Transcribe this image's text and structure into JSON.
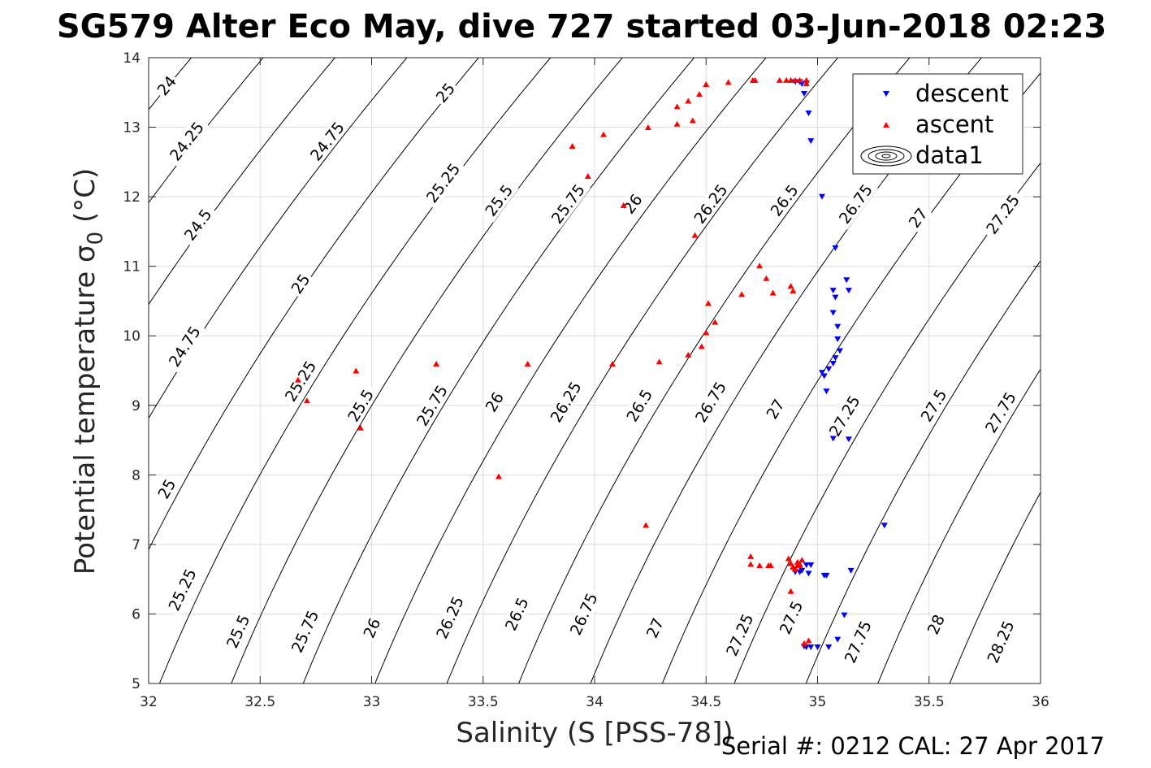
{
  "chart_data": {
    "type": "scatter",
    "title": "SG579 Alter Eco May, dive 727 started 03-Jun-2018 02:23",
    "xlabel": "Salinity (S [PSS-78])",
    "ylabel": "Potential temperature σ",
    "ylabel_subscript": "0",
    "ylabel_unit": " (°C)",
    "xlim": [
      32,
      36
    ],
    "ylim": [
      5,
      14
    ],
    "xticks": [
      "32",
      "32.5",
      "33",
      "33.5",
      "34",
      "34.5",
      "35",
      "35.5",
      "36"
    ],
    "yticks": [
      "5",
      "6",
      "7",
      "8",
      "9",
      "10",
      "11",
      "12",
      "13",
      "14"
    ],
    "grid": true,
    "legend_position": "top-right",
    "legend": [
      "descent",
      "ascent",
      "data1"
    ],
    "contour_levels": [
      24,
      24.25,
      24.5,
      24.75,
      25,
      25.25,
      25.5,
      25.75,
      26,
      26.25,
      26.5,
      26.75,
      27,
      27.25,
      27.5,
      27.75,
      28,
      28.25
    ],
    "contour_labels": [
      {
        "text": "24",
        "s": 32.08,
        "t": 13.6
      },
      {
        "text": "24.25",
        "s": 32.17,
        "t": 12.8
      },
      {
        "text": "24.5",
        "s": 32.22,
        "t": 11.6
      },
      {
        "text": "24.75",
        "s": 32.16,
        "t": 9.85
      },
      {
        "text": "25",
        "s": 32.08,
        "t": 7.8
      },
      {
        "text": "25.25",
        "s": 32.15,
        "t": 6.35
      },
      {
        "text": "25.5",
        "s": 32.4,
        "t": 5.75
      },
      {
        "text": "25.75",
        "s": 32.7,
        "t": 5.75
      },
      {
        "text": "26",
        "s": 33.0,
        "t": 5.8
      },
      {
        "text": "26.25",
        "s": 33.35,
        "t": 5.95
      },
      {
        "text": "26.5",
        "s": 33.65,
        "t": 6.0
      },
      {
        "text": "26.75",
        "s": 33.95,
        "t": 6.0
      },
      {
        "text": "27",
        "s": 34.27,
        "t": 5.8
      },
      {
        "text": "27.25",
        "s": 34.65,
        "t": 5.7
      },
      {
        "text": "27.5",
        "s": 34.88,
        "t": 5.95
      },
      {
        "text": "27.75",
        "s": 35.18,
        "t": 5.6
      },
      {
        "text": "28",
        "s": 35.53,
        "t": 5.85
      },
      {
        "text": "28.25",
        "s": 35.82,
        "t": 5.6
      },
      {
        "text": "24.75",
        "s": 32.8,
        "t": 12.8
      },
      {
        "text": "25",
        "s": 32.68,
        "t": 10.75
      },
      {
        "text": "25.25",
        "s": 32.68,
        "t": 9.35
      },
      {
        "text": "25.5",
        "s": 32.95,
        "t": 9.0
      },
      {
        "text": "25.75",
        "s": 33.27,
        "t": 9.0
      },
      {
        "text": "26",
        "s": 33.55,
        "t": 9.05
      },
      {
        "text": "26.25",
        "s": 33.87,
        "t": 9.05
      },
      {
        "text": "26.5",
        "s": 34.2,
        "t": 9.0
      },
      {
        "text": "26.75",
        "s": 34.52,
        "t": 9.05
      },
      {
        "text": "27",
        "s": 34.81,
        "t": 8.95
      },
      {
        "text": "27.25",
        "s": 35.12,
        "t": 8.85
      },
      {
        "text": "27.5",
        "s": 35.52,
        "t": 9.0
      },
      {
        "text": "27.75",
        "s": 35.82,
        "t": 8.9
      },
      {
        "text": "25",
        "s": 33.33,
        "t": 13.5
      },
      {
        "text": "25.25",
        "s": 33.32,
        "t": 12.2
      },
      {
        "text": "25.5",
        "s": 33.57,
        "t": 11.95
      },
      {
        "text": "25.75",
        "s": 33.88,
        "t": 11.9
      },
      {
        "text": "26",
        "s": 34.17,
        "t": 11.9
      },
      {
        "text": "26.25",
        "s": 34.52,
        "t": 11.9
      },
      {
        "text": "26.5",
        "s": 34.85,
        "t": 11.95
      },
      {
        "text": "26.75",
        "s": 35.17,
        "t": 11.9
      },
      {
        "text": "27",
        "s": 35.45,
        "t": 11.7
      },
      {
        "text": "27.25",
        "s": 35.83,
        "t": 11.75
      }
    ],
    "series": [
      {
        "name": "descent",
        "color": "#0000ff",
        "marker": "triangle-down",
        "x": [
          34.9,
          34.92,
          34.94,
          34.96,
          34.93,
          34.95,
          34.97,
          35.02,
          35.08,
          35.13,
          35.14,
          35.07,
          35.08,
          35.07,
          35.09,
          35.09,
          35.1,
          35.08,
          35.07,
          35.05,
          35.02,
          35.03,
          35.04,
          35.07,
          35.14,
          35.3,
          35.15,
          35.03,
          35.04,
          34.9,
          34.92,
          34.95,
          34.97,
          34.93,
          34.96,
          35.12,
          35.09,
          34.95,
          34.97,
          35.0,
          35.05,
          34.94
        ],
        "y": [
          13.65,
          13.65,
          13.48,
          13.2,
          13.62,
          13.63,
          12.8,
          12.0,
          11.26,
          10.8,
          10.65,
          10.65,
          10.55,
          10.33,
          10.13,
          9.95,
          9.78,
          9.68,
          9.6,
          9.52,
          9.47,
          9.42,
          9.2,
          8.52,
          8.51,
          7.27,
          6.62,
          6.55,
          6.55,
          6.6,
          6.6,
          6.7,
          6.7,
          6.62,
          6.58,
          5.98,
          5.63,
          5.52,
          5.52,
          5.52,
          5.52,
          5.53
        ]
      },
      {
        "name": "ascent",
        "color": "#ff0000",
        "marker": "triangle-up",
        "x": [
          32.67,
          32.71,
          32.93,
          32.95,
          33.29,
          33.57,
          33.7,
          33.9,
          33.97,
          34.04,
          34.08,
          34.13,
          34.23,
          34.24,
          34.29,
          34.37,
          34.37,
          34.42,
          34.42,
          34.44,
          34.45,
          34.47,
          34.48,
          34.5,
          34.5,
          34.51,
          34.54,
          34.6,
          34.66,
          34.72,
          34.74,
          34.77,
          34.8,
          34.83,
          34.86,
          34.88,
          34.89,
          34.9,
          34.92,
          34.95,
          34.7,
          34.71,
          34.74,
          34.78,
          34.79,
          34.7,
          34.87,
          34.88,
          34.89,
          34.9,
          34.91,
          34.92,
          34.93,
          34.88,
          34.89,
          34.9,
          34.91,
          34.92,
          34.94,
          34.96,
          34.95,
          34.88
        ],
        "y": [
          9.37,
          9.07,
          9.5,
          8.68,
          9.6,
          7.98,
          9.6,
          12.73,
          12.3,
          12.9,
          9.6,
          11.88,
          7.28,
          13.0,
          9.63,
          13.05,
          13.3,
          13.38,
          9.73,
          13.1,
          11.45,
          13.48,
          9.85,
          13.62,
          10.05,
          10.47,
          10.2,
          13.65,
          10.6,
          13.68,
          11.01,
          10.83,
          10.62,
          13.68,
          13.68,
          10.72,
          10.65,
          13.68,
          13.68,
          13.68,
          6.83,
          13.68,
          6.7,
          6.7,
          6.7,
          6.72,
          6.8,
          6.73,
          6.68,
          6.65,
          6.75,
          6.7,
          6.78,
          6.33,
          6.68,
          6.65,
          6.7,
          6.72,
          5.58,
          5.62,
          13.63,
          13.68
        ]
      }
    ],
    "footer": "Serial #: 0212  CAL: 27 Apr 2017"
  }
}
